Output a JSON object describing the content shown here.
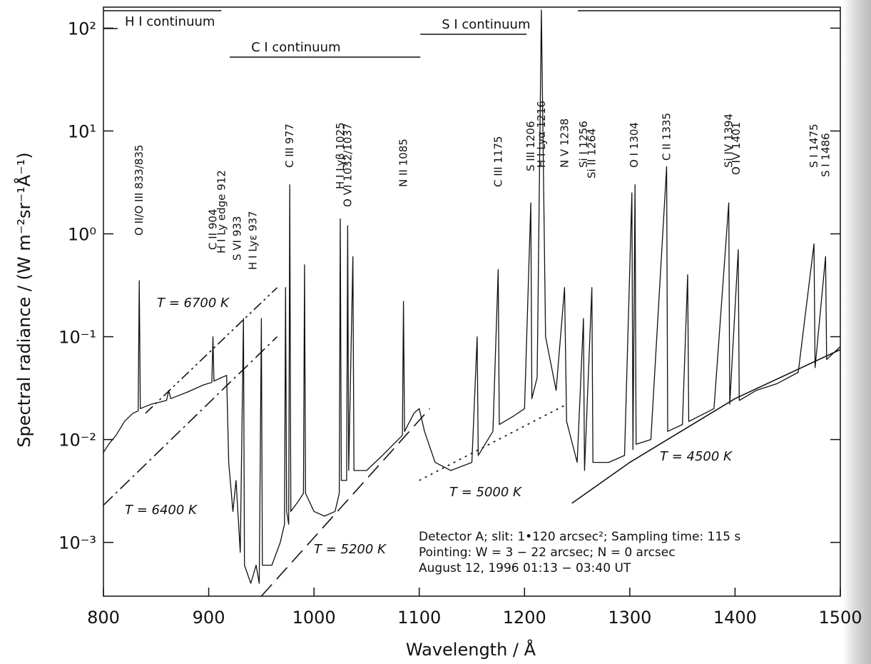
{
  "chart_data": {
    "type": "line",
    "y_label": "Spectral radiance / (W m⁻²sr⁻¹Å⁻¹)",
    "x_label": "Wavelength / Å",
    "xlim": [
      800,
      1500
    ],
    "xticks": [
      800,
      900,
      1000,
      1100,
      1200,
      1300,
      1400,
      1500
    ],
    "ylim": [
      0.0003,
      160
    ],
    "log_y": true,
    "yticks": [
      {
        "value": 100,
        "label": "10²"
      },
      {
        "value": 10,
        "label": "10¹"
      },
      {
        "value": 1,
        "label": "10⁰"
      },
      {
        "value": 0.1,
        "label": "10⁻¹"
      },
      {
        "value": 0.01,
        "label": "10⁻²"
      },
      {
        "value": 0.001,
        "label": "10⁻³"
      }
    ],
    "series": [
      {
        "color": "#111111",
        "linestyle": "solid",
        "x": [
          800,
          805,
          812,
          820,
          828,
          833,
          834,
          835,
          845,
          860,
          862,
          864,
          880,
          895,
          903,
          904,
          905,
          912,
          917,
          919,
          923,
          926,
          930,
          933,
          934,
          940,
          945,
          948,
          950,
          951,
          960,
          968,
          972,
          973,
          974,
          976,
          977,
          978,
          985,
          990,
          991,
          992,
          1000,
          1010,
          1020,
          1024,
          1025,
          1026,
          1031,
          1032,
          1033,
          1037,
          1038,
          1050,
          1065,
          1084,
          1085,
          1086,
          1095,
          1100,
          1105,
          1115,
          1130,
          1150,
          1155,
          1156,
          1170,
          1175,
          1176,
          1190,
          1200,
          1206,
          1207,
          1212,
          1216,
          1220,
          1230,
          1238,
          1240,
          1250,
          1256,
          1257,
          1264,
          1265,
          1280,
          1295,
          1302,
          1303,
          1305,
          1306,
          1320,
          1335,
          1336,
          1350,
          1355,
          1356,
          1380,
          1394,
          1395,
          1403,
          1404,
          1420,
          1440,
          1460,
          1475,
          1476,
          1486,
          1487,
          1500
        ],
        "values": [
          0.0075,
          0.009,
          0.011,
          0.015,
          0.018,
          0.019,
          0.35,
          0.02,
          0.022,
          0.024,
          0.03,
          0.025,
          0.029,
          0.034,
          0.036,
          0.1,
          0.037,
          0.04,
          0.042,
          0.006,
          0.002,
          0.004,
          0.0008,
          0.15,
          0.0006,
          0.0004,
          0.0006,
          0.0004,
          0.15,
          0.0006,
          0.0006,
          0.001,
          0.0015,
          0.3,
          0.002,
          0.0015,
          3.0,
          0.002,
          0.0025,
          0.003,
          0.5,
          0.003,
          0.002,
          0.0018,
          0.002,
          0.003,
          1.4,
          0.004,
          0.004,
          1.2,
          0.005,
          0.6,
          0.005,
          0.005,
          0.007,
          0.011,
          0.22,
          0.012,
          0.018,
          0.02,
          0.012,
          0.006,
          0.005,
          0.006,
          0.1,
          0.007,
          0.012,
          0.45,
          0.014,
          0.017,
          0.02,
          2.0,
          0.025,
          0.04,
          150,
          0.1,
          0.03,
          0.3,
          0.015,
          0.006,
          0.15,
          0.005,
          0.3,
          0.006,
          0.006,
          0.007,
          2.5,
          0.008,
          3.0,
          0.009,
          0.01,
          4.5,
          0.012,
          0.014,
          0.4,
          0.015,
          0.02,
          2.0,
          0.022,
          0.7,
          0.024,
          0.03,
          0.035,
          0.045,
          0.8,
          0.05,
          0.6,
          0.06,
          0.08
        ]
      },
      {
        "name": "T = 6700 K",
        "color": "#111111",
        "linestyle": "dashdotdot",
        "x": [
          840,
          965
        ],
        "values": [
          0.018,
          0.3
        ]
      },
      {
        "name": "T = 6400 K",
        "color": "#111111",
        "linestyle": "dashdot",
        "x": [
          800,
          965
        ],
        "values": [
          0.0023,
          0.1
        ]
      },
      {
        "name": "T = 5200 K",
        "color": "#111111",
        "linestyle": "dashed",
        "x": [
          950,
          1110
        ],
        "values": [
          0.0003,
          0.02
        ]
      },
      {
        "name": "T = 5000 K",
        "color": "#111111",
        "linestyle": "dotted",
        "x": [
          1100,
          1240
        ],
        "values": [
          0.004,
          0.022
        ]
      },
      {
        "name": "T = 4500 K",
        "color": "#111111",
        "linestyle": "solid",
        "x": [
          1245,
          1300,
          1400,
          1500
        ],
        "values": [
          0.0024,
          0.006,
          0.025,
          0.075
        ]
      }
    ],
    "line_ids": [
      {
        "label": "O II/O III 833/835",
        "x": 834
      },
      {
        "label": "C II 904",
        "x": 904
      },
      {
        "label": "H I Ly edge 912",
        "x": 912
      },
      {
        "label": "S VI 933",
        "x": 927
      },
      {
        "label": "H I Lyε 937",
        "x": 942
      },
      {
        "label": "C III 977",
        "x": 977
      },
      {
        "label": "H I Lyβ 1025",
        "x": 1025
      },
      {
        "label": "O VI 1032/1037",
        "x": 1032
      },
      {
        "label": "N II 1085",
        "x": 1085
      },
      {
        "label": "C III 1175",
        "x": 1175
      },
      {
        "label": "S III 1206",
        "x": 1206
      },
      {
        "label": "H I Lyα 1216",
        "x": 1216
      },
      {
        "label": "N V 1238",
        "x": 1238
      },
      {
        "label": "Si I 1256",
        "x": 1256
      },
      {
        "label": "Si II 1264",
        "x": 1264
      },
      {
        "label": "O I 1304",
        "x": 1304
      },
      {
        "label": "C II 1335",
        "x": 1335
      },
      {
        "label": "Si IV 1394",
        "x": 1394
      },
      {
        "label": "O IV 1401",
        "x": 1401
      },
      {
        "label": "S I 1475",
        "x": 1475
      },
      {
        "label": "S I 1486",
        "x": 1486
      }
    ],
    "continua": [
      {
        "label": "H I continuum",
        "x": [
          800,
          912
        ]
      },
      {
        "label": "C I continuum",
        "x": [
          920,
          1101
        ]
      },
      {
        "label": "S I continuum",
        "x": [
          1101,
          1202
        ]
      }
    ],
    "annotations": [
      "Detector A; slit: 1•120 arcsec²; Sampling time: 115 s",
      "Pointing: W = 3 − 22 arcsec; N = 0 arcsec",
      "August 12, 1996      01:13 − 03:40 UT"
    ]
  }
}
